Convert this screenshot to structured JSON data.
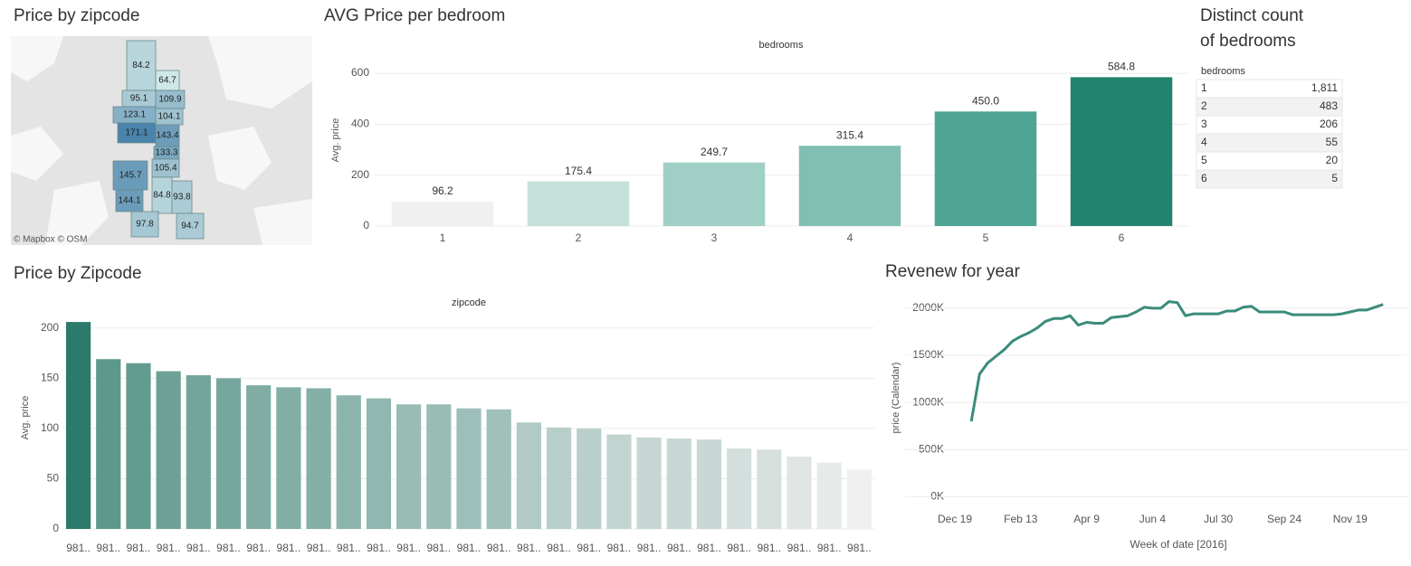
{
  "map": {
    "title": "Price by zipcode",
    "values": [
      84.2,
      64.7,
      95.1,
      109.9,
      123.1,
      104.1,
      171.1,
      143.4,
      133.3,
      105.4,
      145.7,
      144.1,
      84.8,
      93.8,
      97.8,
      94.7
    ],
    "attribution": "© Mapbox © OSM",
    "color_scale": {
      "low": "#cfe7e6",
      "high": "#4a83ab"
    }
  },
  "table": {
    "title_lines": [
      "Distinct count",
      "of bedrooms"
    ],
    "header": "bedrooms",
    "rows": [
      [
        "1",
        "1,811"
      ],
      [
        "2",
        "483"
      ],
      [
        "3",
        "206"
      ],
      [
        "4",
        "55"
      ],
      [
        "5",
        "20"
      ],
      [
        "6",
        "5"
      ]
    ]
  },
  "chart_data": [
    {
      "type": "bar",
      "title": "AVG Price per bedroom",
      "header": "bedrooms",
      "y_label": "Avg. price",
      "categories": [
        "1",
        "2",
        "3",
        "4",
        "5",
        "6"
      ],
      "values": [
        96.2,
        175.4,
        249.7,
        315.4,
        450.0,
        584.8
      ],
      "value_labels": [
        "96.2",
        "175.4",
        "249.7",
        "315.4",
        "450.0",
        "584.8"
      ],
      "colors": [
        "#f0f0f0",
        "#c4e0da",
        "#a0cfc6",
        "#80bfb2",
        "#4fa493",
        "#22846f"
      ],
      "ylim": [
        0,
        650
      ],
      "yticks": [
        0,
        200,
        400,
        600
      ],
      "grid": true
    },
    {
      "type": "bar",
      "title": "Price by Zipcode",
      "header": "zipcode",
      "y_label": "Avg. price",
      "categories": [
        "981..",
        "981..",
        "981..",
        "981..",
        "981..",
        "981..",
        "981..",
        "981..",
        "981..",
        "981..",
        "981..",
        "981..",
        "981..",
        "981..",
        "981..",
        "981..",
        "981..",
        "981..",
        "981..",
        "981..",
        "981..",
        "981..",
        "981..",
        "981..",
        "981..",
        "981..",
        "981.."
      ],
      "values": [
        206,
        169,
        165,
        157,
        153,
        150,
        143,
        141,
        140,
        133,
        130,
        124,
        124,
        120,
        119,
        106,
        101,
        100,
        94,
        91,
        90,
        89,
        80,
        79,
        72,
        66,
        59
      ],
      "color_scale": {
        "low": "#f0f0f0",
        "high": "#2b7a6b"
      },
      "ylim": [
        0,
        216
      ],
      "yticks": [
        0,
        50,
        100,
        150,
        200
      ],
      "grid": true
    },
    {
      "type": "line",
      "title": "Revenew for year",
      "x_label": "Week of date [2016]",
      "y_label": "price (Calendar)",
      "categories": [
        "Dec 19",
        null,
        null,
        null,
        null,
        null,
        null,
        null,
        "Feb 13",
        null,
        null,
        null,
        null,
        null,
        null,
        null,
        "Apr 9",
        null,
        null,
        null,
        null,
        null,
        null,
        null,
        "Jun 4",
        null,
        null,
        null,
        null,
        null,
        null,
        null,
        "Jul 30",
        null,
        null,
        null,
        null,
        null,
        null,
        null,
        "Sep 24",
        null,
        null,
        null,
        null,
        null,
        null,
        null,
        "Nov 19",
        null,
        null,
        null,
        null
      ],
      "values": [
        null,
        null,
        800000,
        1300000,
        1420000,
        1490000,
        1560000,
        1650000,
        1700000,
        1740000,
        1790000,
        1860000,
        1890000,
        1890000,
        1920000,
        1820000,
        1850000,
        1840000,
        1840000,
        1900000,
        1910000,
        1920000,
        1960000,
        2010000,
        2000000,
        2000000,
        2070000,
        2060000,
        1920000,
        1940000,
        1940000,
        1940000,
        1940000,
        1970000,
        1970000,
        2010000,
        2020000,
        1960000,
        1960000,
        1960000,
        1960000,
        1930000,
        1930000,
        1930000,
        1930000,
        1930000,
        1930000,
        1940000,
        1960000,
        1980000,
        1980000,
        2010000,
        2040000
      ],
      "color": "#3a8c7b",
      "ylim": [
        -150000,
        2200000
      ],
      "yticks": [
        {
          "value": 0,
          "label": "0K"
        },
        {
          "value": 500000,
          "label": "500K"
        },
        {
          "value": 1000000,
          "label": "1000K"
        },
        {
          "value": 1500000,
          "label": "1500K"
        },
        {
          "value": 2000000,
          "label": "2000K"
        }
      ],
      "grid": true
    }
  ]
}
